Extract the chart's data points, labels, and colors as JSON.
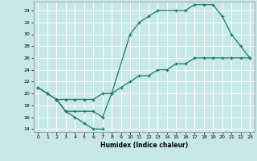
{
  "xlabel": "Humidex (Indice chaleur)",
  "bg_color": "#c8e8e8",
  "grid_color": "#ffffff",
  "line_color": "#1a7a6a",
  "xlim": [
    -0.5,
    23.5
  ],
  "ylim": [
    13.5,
    35.5
  ],
  "yticks": [
    14,
    16,
    18,
    20,
    22,
    24,
    26,
    28,
    30,
    32,
    34
  ],
  "xticks": [
    0,
    1,
    2,
    3,
    4,
    5,
    6,
    7,
    8,
    9,
    10,
    11,
    12,
    13,
    14,
    15,
    16,
    17,
    18,
    19,
    20,
    21,
    22,
    23
  ],
  "line1_x": [
    0,
    1,
    2,
    3,
    4,
    5,
    6,
    7
  ],
  "line1_y": [
    21,
    20,
    19,
    17,
    16,
    15,
    14,
    14
  ],
  "line2_x": [
    0,
    1,
    2,
    3,
    4,
    5,
    6,
    7,
    8,
    10,
    11,
    12,
    13,
    15,
    16,
    17,
    18,
    19,
    20,
    21,
    22,
    23
  ],
  "line2_y": [
    21,
    20,
    19,
    17,
    17,
    17,
    17,
    16,
    20,
    30,
    32,
    33,
    34,
    34,
    34,
    35,
    35,
    35,
    33,
    30,
    28,
    26
  ],
  "line3_x": [
    2,
    3,
    4,
    5,
    6,
    7,
    8,
    9,
    10,
    11,
    12,
    13,
    14,
    15,
    16,
    17,
    18,
    19,
    20,
    21,
    22,
    23
  ],
  "line3_y": [
    19,
    19,
    19,
    19,
    19,
    20,
    20,
    21,
    22,
    23,
    23,
    24,
    24,
    25,
    25,
    26,
    26,
    26,
    26,
    26,
    26,
    26
  ]
}
